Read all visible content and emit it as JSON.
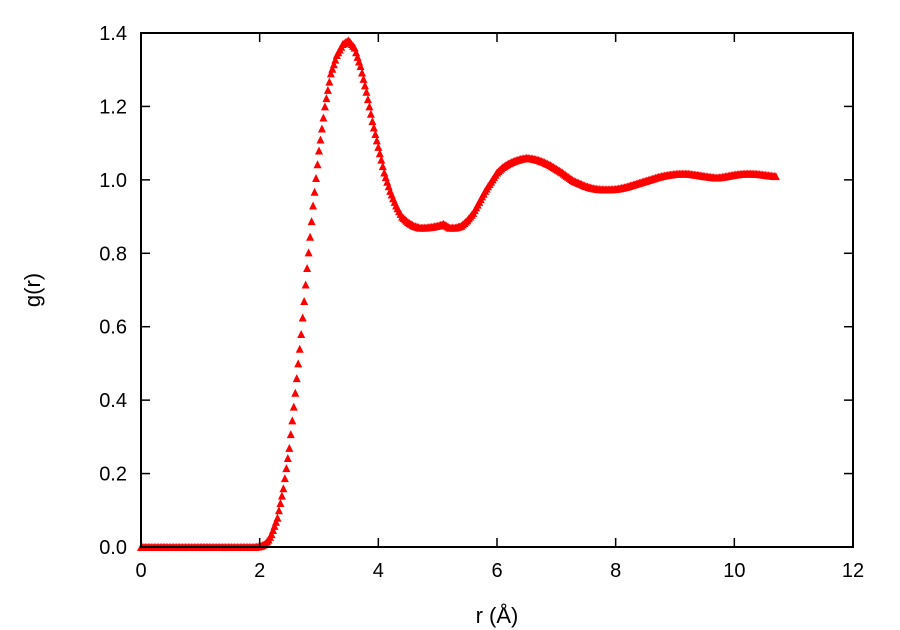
{
  "chart_data": {
    "type": "scatter",
    "xlabel": "r (Å)",
    "ylabel": "g(r)",
    "xlim": [
      0,
      12
    ],
    "ylim": [
      0.0,
      1.4
    ],
    "xticks": [
      "0",
      "2",
      "4",
      "6",
      "8",
      "10",
      "12"
    ],
    "yticks": [
      "0.0",
      "0.2",
      "0.4",
      "0.6",
      "0.8",
      "1.0",
      "1.2",
      "1.4"
    ],
    "grid": false,
    "legend": "none",
    "marker": "filled-triangle",
    "series": [
      {
        "color": "#ff0000",
        "x": [
          0.0,
          1.0,
          1.9,
          2.0,
          2.05,
          2.1,
          2.15,
          2.2,
          2.3,
          2.4,
          2.5,
          2.6,
          2.7,
          2.8,
          2.9,
          3.0,
          3.1,
          3.2,
          3.3,
          3.4,
          3.5,
          3.6,
          3.7,
          3.8,
          3.9,
          4.0,
          4.1,
          4.2,
          4.3,
          4.4,
          4.5,
          4.6,
          4.7,
          4.8,
          4.9,
          5.0,
          5.1,
          5.2,
          5.3,
          5.4,
          5.5,
          5.6,
          5.7,
          5.8,
          5.9,
          6.0,
          6.1,
          6.2,
          6.3,
          6.4,
          6.5,
          6.6,
          6.7,
          6.8,
          6.9,
          7.0,
          7.1,
          7.2,
          7.3,
          7.4,
          7.5,
          7.6,
          7.7,
          7.8,
          7.9,
          8.0,
          8.1,
          8.2,
          8.3,
          8.4,
          8.5,
          8.6,
          8.7,
          8.8,
          8.9,
          9.0,
          9.1,
          9.2,
          9.3,
          9.4,
          9.5,
          9.6,
          9.7,
          9.8,
          9.9,
          10.0,
          10.1,
          10.2,
          10.3,
          10.4,
          10.5,
          10.6,
          10.7
        ],
        "y": [
          0.0,
          0.0,
          0.0,
          0.002,
          0.005,
          0.01,
          0.02,
          0.035,
          0.08,
          0.16,
          0.27,
          0.42,
          0.58,
          0.76,
          0.93,
          1.08,
          1.2,
          1.29,
          1.34,
          1.37,
          1.38,
          1.36,
          1.31,
          1.24,
          1.16,
          1.09,
          1.02,
          0.97,
          0.93,
          0.9,
          0.885,
          0.875,
          0.87,
          0.87,
          0.872,
          0.875,
          0.88,
          0.87,
          0.87,
          0.875,
          0.89,
          0.91,
          0.94,
          0.97,
          0.995,
          1.02,
          1.035,
          1.045,
          1.052,
          1.057,
          1.06,
          1.058,
          1.054,
          1.048,
          1.04,
          1.03,
          1.02,
          1.008,
          0.997,
          0.99,
          0.983,
          0.978,
          0.975,
          0.974,
          0.974,
          0.975,
          0.978,
          0.982,
          0.987,
          0.992,
          0.997,
          1.002,
          1.007,
          1.011,
          1.014,
          1.016,
          1.017,
          1.017,
          1.015,
          1.013,
          1.01,
          1.008,
          1.006,
          1.008,
          1.011,
          1.014,
          1.016,
          1.017,
          1.017,
          1.016,
          1.014,
          1.012,
          1.01
        ]
      }
    ]
  }
}
